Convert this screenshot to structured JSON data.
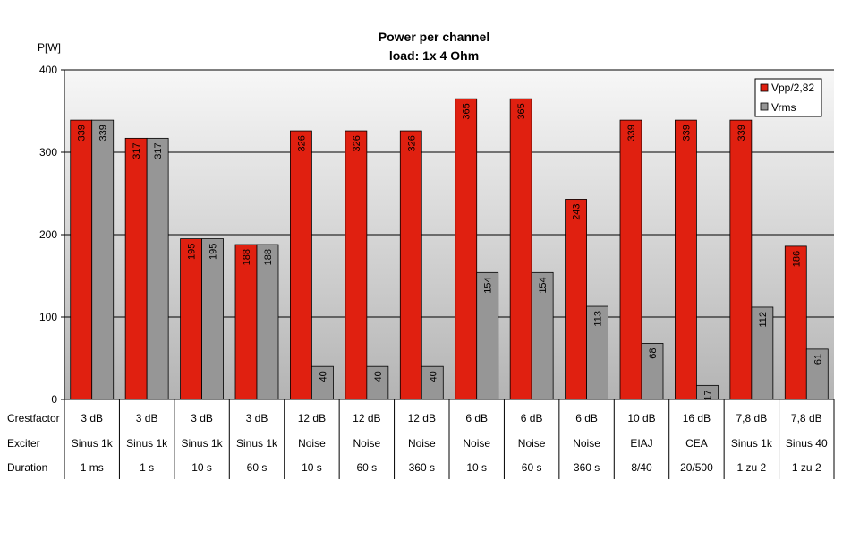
{
  "chart_data": {
    "type": "bar",
    "title": "Power per channel",
    "subtitle": "load:  1x 4 Ohm",
    "ylabel": "P[W]",
    "ylim": [
      0,
      400
    ],
    "yticks": [
      0,
      100,
      200,
      300,
      400
    ],
    "grid": true,
    "legend_position": "top-right",
    "row_labels": [
      "Crestfactor",
      "Exciter",
      "Duration"
    ],
    "categories": [
      {
        "crestfactor": "3 dB",
        "exciter": "Sinus 1k",
        "duration": "1 ms"
      },
      {
        "crestfactor": "3 dB",
        "exciter": "Sinus 1k",
        "duration": "1 s"
      },
      {
        "crestfactor": "3 dB",
        "exciter": "Sinus 1k",
        "duration": "10 s"
      },
      {
        "crestfactor": "3 dB",
        "exciter": "Sinus 1k",
        "duration": "60 s"
      },
      {
        "crestfactor": "12 dB",
        "exciter": "Noise",
        "duration": "10 s"
      },
      {
        "crestfactor": "12 dB",
        "exciter": "Noise",
        "duration": "60 s"
      },
      {
        "crestfactor": "12 dB",
        "exciter": "Noise",
        "duration": "360 s"
      },
      {
        "crestfactor": "6 dB",
        "exciter": "Noise",
        "duration": "10 s"
      },
      {
        "crestfactor": "6 dB",
        "exciter": "Noise",
        "duration": "60 s"
      },
      {
        "crestfactor": "6 dB",
        "exciter": "Noise",
        "duration": "360 s"
      },
      {
        "crestfactor": "10 dB",
        "exciter": "EIAJ",
        "duration": "8/40"
      },
      {
        "crestfactor": "16 dB",
        "exciter": "CEA",
        "duration": "20/500"
      },
      {
        "crestfactor": "7,8 dB",
        "exciter": "Sinus 1k",
        "duration": "1 zu 2"
      },
      {
        "crestfactor": "7,8 dB",
        "exciter": "Sinus 40",
        "duration": "1 zu 2"
      }
    ],
    "series": [
      {
        "name": "Vpp/2,82",
        "color": "#e02010",
        "values": [
          339,
          317,
          195,
          188,
          326,
          326,
          326,
          365,
          365,
          243,
          339,
          339,
          339,
          186
        ]
      },
      {
        "name": "Vrms",
        "color": "#969696",
        "values": [
          339,
          317,
          195,
          188,
          40,
          40,
          40,
          154,
          154,
          113,
          68,
          17,
          112,
          61
        ]
      }
    ]
  }
}
